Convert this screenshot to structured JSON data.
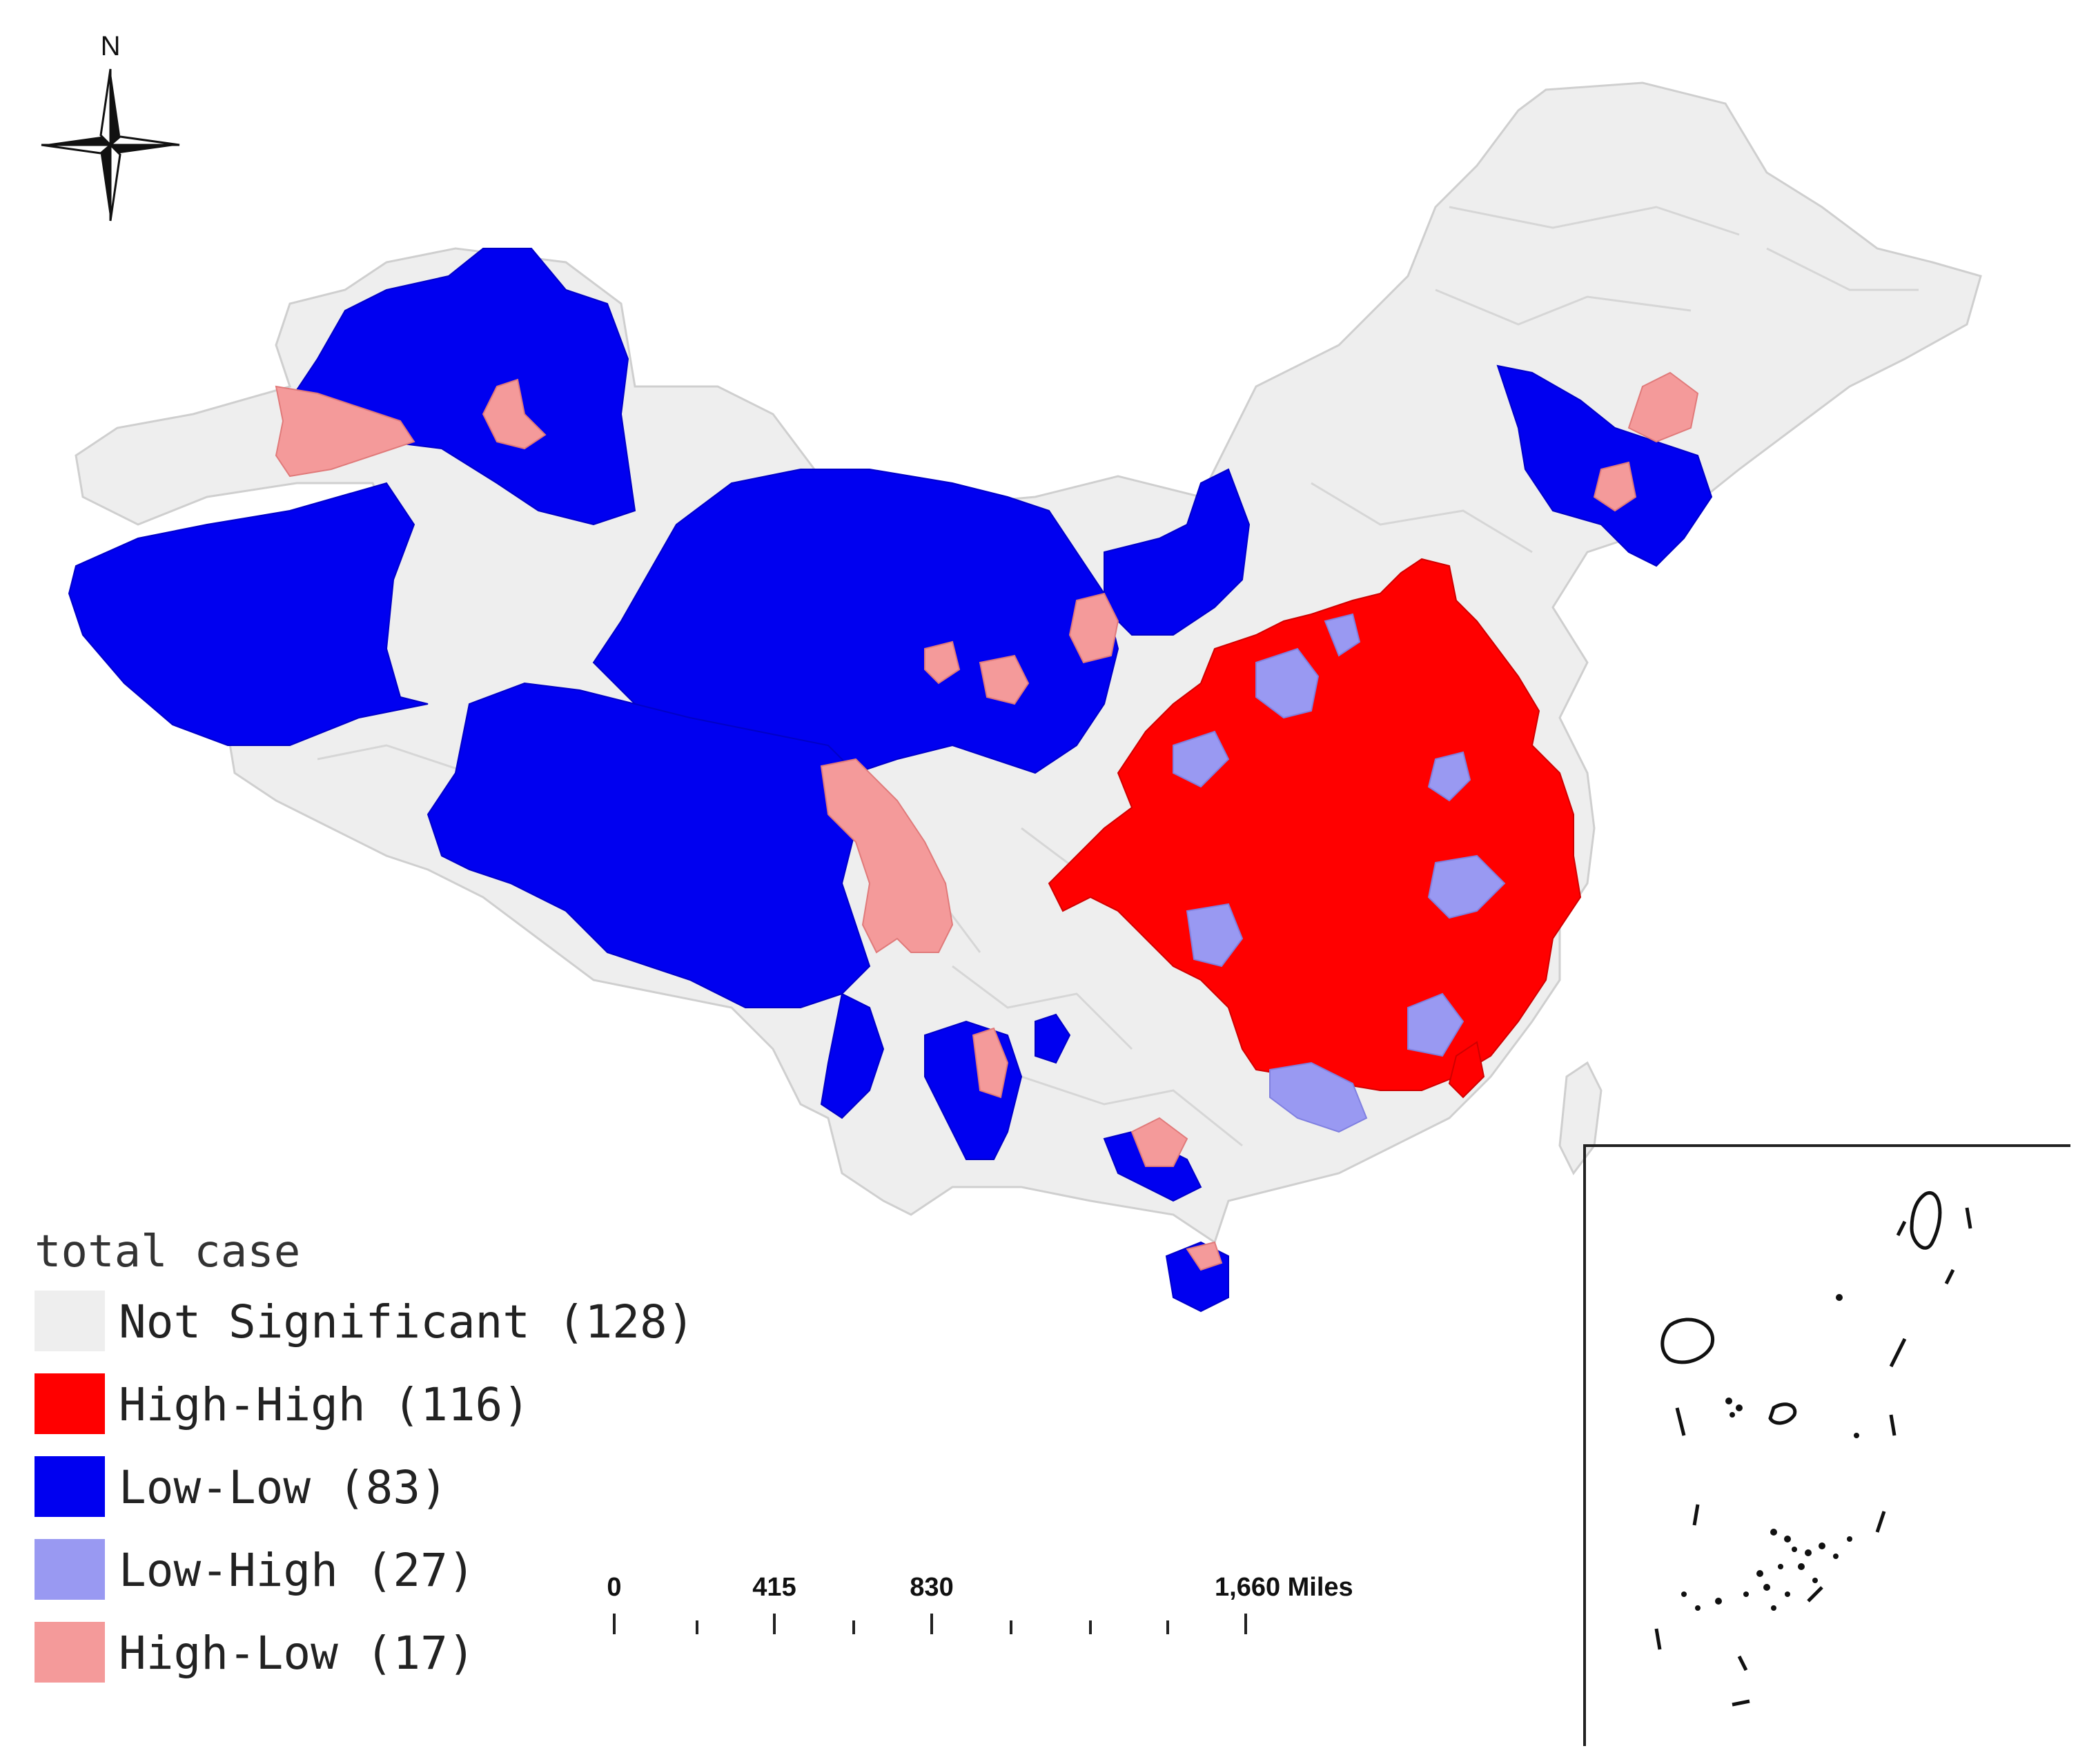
{
  "north_arrow": {
    "label": "N",
    "icon": "north-arrow-icon"
  },
  "legend": {
    "title": "total case",
    "items": [
      {
        "key": "ns",
        "label": "Not Significant (128)",
        "color": "#eeeeee"
      },
      {
        "key": "hh",
        "label": "High-High (116)",
        "color": "#ff0000"
      },
      {
        "key": "ll",
        "label": "Low-Low (83)",
        "color": "#0000f0"
      },
      {
        "key": "lh",
        "label": "Low-High (27)",
        "color": "#9999f2"
      },
      {
        "key": "hl",
        "label": "High-Low (17)",
        "color": "#f49a9a"
      }
    ]
  },
  "scale_bar": {
    "ticks": [
      "0",
      "415",
      "830",
      "1,660 Miles"
    ]
  },
  "colors": {
    "not_significant": "#eeeeee",
    "high_high": "#ff0000",
    "low_low": "#0000f0",
    "low_high": "#9999f2",
    "high_low": "#f49a9a",
    "boundary": "#cfcfcf"
  },
  "inset": {
    "description_icon": "south-china-sea-inset-icon"
  }
}
